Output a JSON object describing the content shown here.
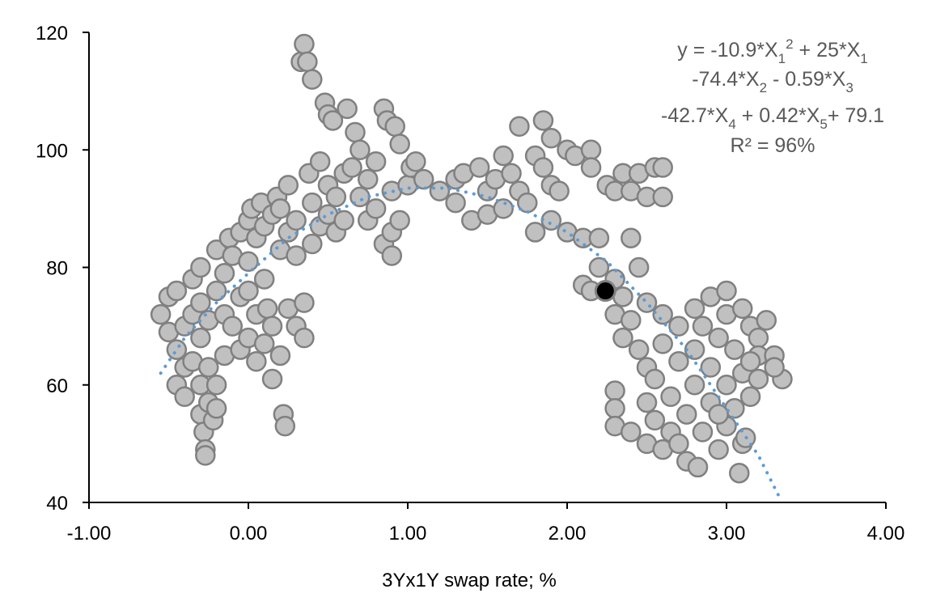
{
  "chart_data": {
    "type": "scatter",
    "title": "",
    "xlabel": "3Yx1Y swap rate; %",
    "ylabel": "",
    "xlim": [
      -1,
      4
    ],
    "ylim": [
      40,
      120
    ],
    "x_ticks": [
      "-1.00",
      "0.00",
      "1.00",
      "2.00",
      "3.00",
      "4.00"
    ],
    "y_ticks": [
      "40",
      "60",
      "80",
      "100",
      "120"
    ],
    "grid": false,
    "annotation": {
      "line1": "y = -10.9*X1² + 25*X1",
      "line2": "-74.4*X2 - 0.59*X3",
      "line3": "-42.7*X4 + 0.42*X5+ 79.1",
      "line4": "R² = 96%"
    },
    "colors": {
      "points_fill": "#c0c0c0",
      "points_stroke": "#808080",
      "trendline": "#5b9bd5",
      "highlight": "#000000"
    },
    "highlight_point": [
      2.24,
      76
    ],
    "trendline": [
      [
        -0.55,
        62
      ],
      [
        -0.4,
        68
      ],
      [
        -0.2,
        74
      ],
      [
        0,
        79
      ],
      [
        0.25,
        85
      ],
      [
        0.5,
        89
      ],
      [
        0.75,
        92
      ],
      [
        1.0,
        93.5
      ],
      [
        1.25,
        93.5
      ],
      [
        1.5,
        92
      ],
      [
        1.75,
        89.5
      ],
      [
        2.0,
        86
      ],
      [
        2.25,
        81
      ],
      [
        2.5,
        74
      ],
      [
        2.75,
        66
      ],
      [
        3.0,
        56
      ],
      [
        3.2,
        48
      ],
      [
        3.33,
        41
      ]
    ],
    "points": [
      [
        -0.55,
        72
      ],
      [
        -0.5,
        69
      ],
      [
        -0.5,
        75
      ],
      [
        -0.45,
        76
      ],
      [
        -0.45,
        66
      ],
      [
        -0.45,
        60
      ],
      [
        -0.4,
        63
      ],
      [
        -0.4,
        70
      ],
      [
        -0.4,
        58
      ],
      [
        -0.35,
        64
      ],
      [
        -0.35,
        72
      ],
      [
        -0.35,
        78
      ],
      [
        -0.3,
        55
      ],
      [
        -0.3,
        60
      ],
      [
        -0.3,
        68
      ],
      [
        -0.3,
        74
      ],
      [
        -0.3,
        80
      ],
      [
        -0.28,
        52
      ],
      [
        -0.27,
        49
      ],
      [
        -0.27,
        48
      ],
      [
        -0.25,
        57
      ],
      [
        -0.25,
        63
      ],
      [
        -0.25,
        71
      ],
      [
        -0.22,
        54
      ],
      [
        -0.2,
        56
      ],
      [
        -0.2,
        60
      ],
      [
        -0.2,
        76
      ],
      [
        -0.2,
        83
      ],
      [
        -0.15,
        65
      ],
      [
        -0.15,
        72
      ],
      [
        -0.15,
        79
      ],
      [
        -0.12,
        85
      ],
      [
        -0.1,
        70
      ],
      [
        -0.1,
        82
      ],
      [
        -0.05,
        66
      ],
      [
        -0.05,
        75
      ],
      [
        -0.05,
        86
      ],
      [
        0,
        68
      ],
      [
        0,
        76
      ],
      [
        0,
        81
      ],
      [
        0,
        88
      ],
      [
        0.02,
        90
      ],
      [
        0.05,
        64
      ],
      [
        0.05,
        72
      ],
      [
        0.05,
        85
      ],
      [
        0.08,
        91
      ],
      [
        0.1,
        67
      ],
      [
        0.1,
        78
      ],
      [
        0.1,
        87
      ],
      [
        0.12,
        73
      ],
      [
        0.15,
        61
      ],
      [
        0.15,
        70
      ],
      [
        0.15,
        89
      ],
      [
        0.18,
        92
      ],
      [
        0.2,
        65
      ],
      [
        0.2,
        83
      ],
      [
        0.2,
        90
      ],
      [
        0.22,
        55
      ],
      [
        0.23,
        53
      ],
      [
        0.25,
        73
      ],
      [
        0.25,
        86
      ],
      [
        0.25,
        94
      ],
      [
        0.3,
        70
      ],
      [
        0.3,
        82
      ],
      [
        0.3,
        88
      ],
      [
        0.33,
        115
      ],
      [
        0.35,
        118
      ],
      [
        0.35,
        74
      ],
      [
        0.35,
        68
      ],
      [
        0.37,
        115
      ],
      [
        0.38,
        96
      ],
      [
        0.4,
        112
      ],
      [
        0.4,
        84
      ],
      [
        0.4,
        91
      ],
      [
        0.45,
        87
      ],
      [
        0.45,
        98
      ],
      [
        0.48,
        108
      ],
      [
        0.5,
        106
      ],
      [
        0.5,
        94
      ],
      [
        0.5,
        89
      ],
      [
        0.53,
        105
      ],
      [
        0.55,
        86
      ],
      [
        0.55,
        92
      ],
      [
        0.6,
        88
      ],
      [
        0.6,
        96
      ],
      [
        0.62,
        107
      ],
      [
        0.65,
        97
      ],
      [
        0.67,
        103
      ],
      [
        0.7,
        92
      ],
      [
        0.7,
        100
      ],
      [
        0.75,
        88
      ],
      [
        0.75,
        95
      ],
      [
        0.8,
        90
      ],
      [
        0.8,
        98
      ],
      [
        0.85,
        107
      ],
      [
        0.85,
        84
      ],
      [
        0.87,
        105
      ],
      [
        0.9,
        82
      ],
      [
        0.9,
        86
      ],
      [
        0.9,
        93
      ],
      [
        0.92,
        104
      ],
      [
        0.95,
        88
      ],
      [
        0.95,
        101
      ],
      [
        1.0,
        94
      ],
      [
        1.02,
        97
      ],
      [
        1.05,
        98
      ],
      [
        1.1,
        95
      ],
      [
        1.2,
        93
      ],
      [
        1.3,
        95
      ],
      [
        1.3,
        91
      ],
      [
        1.35,
        96
      ],
      [
        1.4,
        88
      ],
      [
        1.45,
        97
      ],
      [
        1.5,
        89
      ],
      [
        1.5,
        93
      ],
      [
        1.55,
        95
      ],
      [
        1.6,
        90
      ],
      [
        1.6,
        99
      ],
      [
        1.65,
        96
      ],
      [
        1.7,
        104
      ],
      [
        1.7,
        93
      ],
      [
        1.75,
        91
      ],
      [
        1.8,
        86
      ],
      [
        1.8,
        99
      ],
      [
        1.85,
        105
      ],
      [
        1.85,
        97
      ],
      [
        1.9,
        102
      ],
      [
        1.9,
        94
      ],
      [
        1.9,
        88
      ],
      [
        1.95,
        93
      ],
      [
        2.0,
        100
      ],
      [
        2.0,
        86
      ],
      [
        2.05,
        99
      ],
      [
        2.1,
        85
      ],
      [
        2.15,
        100
      ],
      [
        2.15,
        97
      ],
      [
        2.2,
        85
      ],
      [
        2.25,
        94
      ],
      [
        2.3,
        93
      ],
      [
        2.35,
        96
      ],
      [
        2.4,
        85
      ],
      [
        2.4,
        93
      ],
      [
        2.45,
        96
      ],
      [
        2.5,
        92
      ],
      [
        2.55,
        97
      ],
      [
        2.6,
        97
      ],
      [
        2.6,
        92
      ],
      [
        2.1,
        77
      ],
      [
        2.15,
        76
      ],
      [
        2.2,
        80
      ],
      [
        2.3,
        78
      ],
      [
        2.3,
        72
      ],
      [
        2.35,
        68
      ],
      [
        2.35,
        75
      ],
      [
        2.4,
        71
      ],
      [
        2.45,
        80
      ],
      [
        2.45,
        66
      ],
      [
        2.5,
        74
      ],
      [
        2.5,
        63
      ],
      [
        2.3,
        59
      ],
      [
        2.3,
        56
      ],
      [
        2.3,
        53
      ],
      [
        2.4,
        52
      ],
      [
        2.5,
        57
      ],
      [
        2.5,
        50
      ],
      [
        2.55,
        61
      ],
      [
        2.55,
        54
      ],
      [
        2.6,
        67
      ],
      [
        2.6,
        72
      ],
      [
        2.6,
        49
      ],
      [
        2.65,
        58
      ],
      [
        2.65,
        52
      ],
      [
        2.7,
        64
      ],
      [
        2.7,
        70
      ],
      [
        2.75,
        47
      ],
      [
        2.75,
        55
      ],
      [
        2.8,
        73
      ],
      [
        2.8,
        60
      ],
      [
        2.8,
        66
      ],
      [
        2.82,
        46
      ],
      [
        2.85,
        52
      ],
      [
        2.85,
        70
      ],
      [
        2.9,
        75
      ],
      [
        2.9,
        63
      ],
      [
        2.9,
        57
      ],
      [
        2.95,
        49
      ],
      [
        2.95,
        68
      ],
      [
        3.0,
        76
      ],
      [
        3.0,
        72
      ],
      [
        3.0,
        60
      ],
      [
        3.0,
        53
      ],
      [
        3.05,
        66
      ],
      [
        3.05,
        56
      ],
      [
        3.08,
        45
      ],
      [
        3.1,
        73
      ],
      [
        3.1,
        62
      ],
      [
        3.1,
        50
      ],
      [
        3.15,
        70
      ],
      [
        3.15,
        58
      ],
      [
        3.2,
        68
      ],
      [
        3.2,
        61
      ],
      [
        3.2,
        65
      ],
      [
        3.25,
        71
      ],
      [
        3.3,
        65
      ],
      [
        3.35,
        61
      ],
      [
        3.3,
        63
      ],
      [
        2.7,
        50
      ],
      [
        2.95,
        55
      ],
      [
        3.12,
        51
      ],
      [
        3.15,
        64
      ]
    ]
  }
}
